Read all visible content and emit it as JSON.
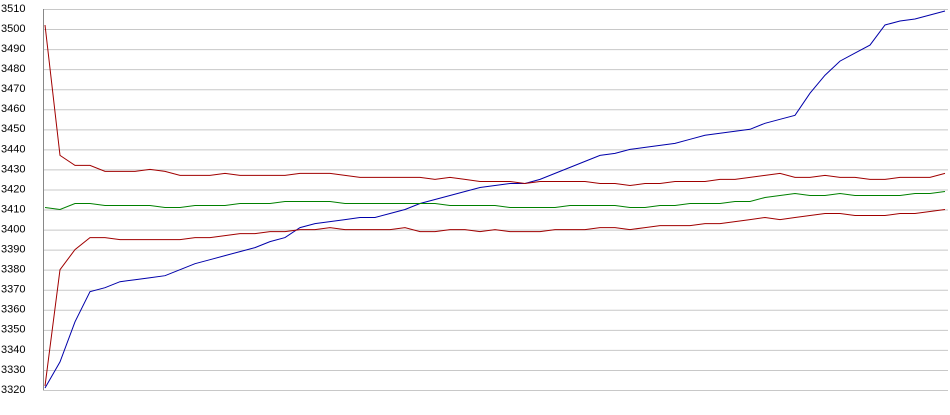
{
  "chart_data": {
    "type": "line",
    "ylim": [
      3320,
      3510
    ],
    "yticks": [
      3320,
      3330,
      3340,
      3350,
      3360,
      3370,
      3380,
      3390,
      3400,
      3410,
      3420,
      3430,
      3440,
      3450,
      3460,
      3470,
      3480,
      3490,
      3500,
      3510
    ],
    "grid": true,
    "series": [
      {
        "color": "#0000aa",
        "values": [
          3321,
          3334,
          3354,
          3369,
          3371,
          3374,
          3375,
          3376,
          3377,
          3380,
          3383,
          3385,
          3387,
          3389,
          3391,
          3394,
          3396,
          3401,
          3403,
          3404,
          3405,
          3406,
          3406,
          3408,
          3410,
          3413,
          3415,
          3417,
          3419,
          3421,
          3422,
          3423,
          3423,
          3425,
          3428,
          3431,
          3434,
          3437,
          3438,
          3440,
          3441,
          3442,
          3443,
          3445,
          3447,
          3448,
          3449,
          3450,
          3453,
          3455,
          3457,
          3468,
          3477,
          3484,
          3488,
          3492,
          3502,
          3504,
          3505,
          3507,
          3509
        ]
      },
      {
        "color": "#a00000",
        "values": [
          3502,
          3437,
          3432,
          3432,
          3429,
          3429,
          3429,
          3430,
          3429,
          3427,
          3427,
          3427,
          3428,
          3427,
          3427,
          3427,
          3427,
          3428,
          3428,
          3428,
          3427,
          3426,
          3426,
          3426,
          3426,
          3426,
          3425,
          3426,
          3425,
          3424,
          3424,
          3424,
          3423,
          3424,
          3424,
          3424,
          3424,
          3423,
          3423,
          3422,
          3423,
          3423,
          3424,
          3424,
          3424,
          3425,
          3425,
          3426,
          3427,
          3428,
          3426,
          3426,
          3427,
          3426,
          3426,
          3425,
          3425,
          3426,
          3426,
          3426,
          3428
        ]
      },
      {
        "color": "#008000",
        "values": [
          3411,
          3410,
          3413,
          3413,
          3412,
          3412,
          3412,
          3412,
          3411,
          3411,
          3412,
          3412,
          3412,
          3413,
          3413,
          3413,
          3414,
          3414,
          3414,
          3414,
          3413,
          3413,
          3413,
          3413,
          3413,
          3413,
          3413,
          3412,
          3412,
          3412,
          3412,
          3411,
          3411,
          3411,
          3411,
          3412,
          3412,
          3412,
          3412,
          3411,
          3411,
          3412,
          3412,
          3413,
          3413,
          3413,
          3414,
          3414,
          3416,
          3417,
          3418,
          3417,
          3417,
          3418,
          3417,
          3417,
          3417,
          3417,
          3418,
          3418,
          3419
        ]
      },
      {
        "color": "#a00000",
        "values": [
          3322,
          3380,
          3390,
          3396,
          3396,
          3395,
          3395,
          3395,
          3395,
          3395,
          3396,
          3396,
          3397,
          3398,
          3398,
          3399,
          3399,
          3400,
          3400,
          3401,
          3400,
          3400,
          3400,
          3400,
          3401,
          3399,
          3399,
          3400,
          3400,
          3399,
          3400,
          3399,
          3399,
          3399,
          3400,
          3400,
          3400,
          3401,
          3401,
          3400,
          3401,
          3402,
          3402,
          3402,
          3403,
          3403,
          3404,
          3405,
          3406,
          3405,
          3406,
          3407,
          3408,
          3408,
          3407,
          3407,
          3407,
          3408,
          3408,
          3409,
          3410
        ]
      }
    ]
  }
}
